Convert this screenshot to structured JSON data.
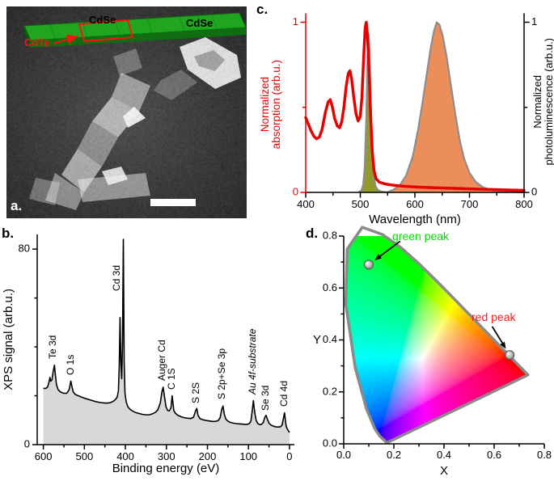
{
  "panels": {
    "a": {
      "letter": "a.",
      "inset": {
        "core_outline_label": "CdSe",
        "crown_label": "CdSe",
        "core_label": "CdTe",
        "slab_color": "#1fa51f",
        "outline_color": "#ff1111"
      }
    },
    "b": {
      "letter": "b."
    },
    "c": {
      "letter": "c."
    },
    "d": {
      "letter": "d."
    }
  },
  "chart_data": [
    {
      "id": "absorption_pl_spectra",
      "type": "line",
      "xlabel": "Wavelength (nm)",
      "ylabel_left": [
        "Normalized",
        "absorption (arb.u.)"
      ],
      "ylabel_right": [
        "Normalized",
        "photoluminescence (arb.u.)"
      ],
      "axis_color_left": "#e60000",
      "xlim": [
        400,
        800
      ],
      "ylim": [
        0,
        1.05
      ],
      "xticks": [
        400,
        500,
        600,
        700,
        800
      ],
      "xticks_minor": [
        450,
        550,
        650,
        750
      ],
      "yticks": [
        0,
        1
      ],
      "series": [
        {
          "name": "pl_green",
          "fill": "#93992d",
          "stroke": "#8d8d8d",
          "width": 2.2,
          "points": [
            [
              496,
              0
            ],
            [
              502,
              0.01
            ],
            [
              505,
              0.04
            ],
            [
              508,
              0.14
            ],
            [
              511,
              0.45
            ],
            [
              513,
              0.78
            ],
            [
              515,
              0.93
            ],
            [
              517,
              0.83
            ],
            [
              519,
              0.52
            ],
            [
              522,
              0.22
            ],
            [
              525,
              0.09
            ],
            [
              528,
              0.035
            ],
            [
              532,
              0.015
            ],
            [
              538,
              0.006
            ],
            [
              546,
              0.002
            ],
            [
              552,
              0
            ]
          ]
        },
        {
          "name": "pl_red",
          "fill": "#ec8e5a",
          "stroke": "#8d8d8d",
          "width": 2.2,
          "points": [
            [
              548,
              0
            ],
            [
              560,
              0.015
            ],
            [
              572,
              0.04
            ],
            [
              584,
              0.1
            ],
            [
              596,
              0.21
            ],
            [
              606,
              0.37
            ],
            [
              614,
              0.53
            ],
            [
              622,
              0.7
            ],
            [
              629,
              0.85
            ],
            [
              635,
              0.95
            ],
            [
              640,
              1.0
            ],
            [
              645,
              0.985
            ],
            [
              651,
              0.92
            ],
            [
              658,
              0.8
            ],
            [
              666,
              0.63
            ],
            [
              674,
              0.46
            ],
            [
              682,
              0.31
            ],
            [
              690,
              0.2
            ],
            [
              700,
              0.115
            ],
            [
              712,
              0.06
            ],
            [
              726,
              0.028
            ],
            [
              742,
              0.012
            ],
            [
              760,
              0.005
            ],
            [
              780,
              0.002
            ],
            [
              800,
              0
            ]
          ]
        },
        {
          "name": "absorption",
          "color": "#e60000",
          "width": 3.5,
          "points": [
            [
              400,
              0.44
            ],
            [
              405,
              0.4
            ],
            [
              410,
              0.36
            ],
            [
              415,
              0.33
            ],
            [
              420,
              0.315
            ],
            [
              425,
              0.325
            ],
            [
              430,
              0.37
            ],
            [
              436,
              0.47
            ],
            [
              441,
              0.53
            ],
            [
              445,
              0.545
            ],
            [
              449,
              0.5
            ],
            [
              453,
              0.435
            ],
            [
              458,
              0.39
            ],
            [
              462,
              0.38
            ],
            [
              466,
              0.415
            ],
            [
              470,
              0.5
            ],
            [
              474,
              0.62
            ],
            [
              478,
              0.7
            ],
            [
              481,
              0.715
            ],
            [
              484,
              0.67
            ],
            [
              488,
              0.56
            ],
            [
              492,
              0.465
            ],
            [
              496,
              0.42
            ],
            [
              500,
              0.445
            ],
            [
              503,
              0.56
            ],
            [
              506,
              0.78
            ],
            [
              509,
              0.97
            ],
            [
              511,
              1.0
            ],
            [
              513,
              0.93
            ],
            [
              516,
              0.72
            ],
            [
              519,
              0.45
            ],
            [
              522,
              0.24
            ],
            [
              525,
              0.13
            ],
            [
              529,
              0.08
            ],
            [
              535,
              0.06
            ],
            [
              545,
              0.05
            ],
            [
              560,
              0.042
            ],
            [
              580,
              0.036
            ],
            [
              600,
              0.032
            ],
            [
              630,
              0.028
            ],
            [
              660,
              0.025
            ],
            [
              700,
              0.021
            ],
            [
              740,
              0.017
            ],
            [
              770,
              0.014
            ],
            [
              800,
              0.012
            ]
          ]
        }
      ]
    },
    {
      "id": "xps_spectrum",
      "type": "area",
      "xlabel": "Binding energy (eV)",
      "ylabel": "XPS signal (arb.u.)",
      "xlim": [
        615,
        -12
      ],
      "ylim": [
        0,
        86
      ],
      "xticks": [
        600,
        500,
        400,
        300,
        200,
        100,
        0
      ],
      "xticks_minor": [
        550,
        450,
        350,
        250,
        150,
        50
      ],
      "yticks": [
        0,
        80
      ],
      "yticks_minor": [
        20,
        40,
        60
      ],
      "fill": "#d8d8d8",
      "line_color": "#000000",
      "points": [
        [
          600,
          23
        ],
        [
          594,
          23
        ],
        [
          590,
          23.5
        ],
        [
          587,
          25
        ],
        [
          584,
          27.5
        ],
        [
          582,
          26
        ],
        [
          579,
          26.5
        ],
        [
          576,
          30
        ],
        [
          573,
          32.5
        ],
        [
          571,
          29
        ],
        [
          568,
          24.5
        ],
        [
          564,
          22.5
        ],
        [
          558,
          21.5
        ],
        [
          550,
          21
        ],
        [
          543,
          21
        ],
        [
          537,
          22.5
        ],
        [
          533,
          26
        ],
        [
          530,
          23.5
        ],
        [
          527,
          21.5
        ],
        [
          522,
          20.5
        ],
        [
          515,
          20
        ],
        [
          508,
          19.5
        ],
        [
          500,
          19
        ],
        [
          490,
          18.5
        ],
        [
          480,
          18
        ],
        [
          470,
          17.5
        ],
        [
          460,
          17.2
        ],
        [
          450,
          17
        ],
        [
          442,
          17
        ],
        [
          435,
          17.3
        ],
        [
          429,
          17.8
        ],
        [
          424,
          18.5
        ],
        [
          420,
          19.5
        ],
        [
          417,
          22
        ],
        [
          415,
          32
        ],
        [
          413,
          52
        ],
        [
          411,
          34
        ],
        [
          409,
          27
        ],
        [
          407,
          42
        ],
        [
          405,
          84
        ],
        [
          403,
          34
        ],
        [
          401,
          21
        ],
        [
          398,
          17.5
        ],
        [
          394,
          15.5
        ],
        [
          389,
          14.5
        ],
        [
          383,
          13.8
        ],
        [
          376,
          13.2
        ],
        [
          368,
          12.8
        ],
        [
          359,
          12.4
        ],
        [
          350,
          12.2
        ],
        [
          342,
          12.2
        ],
        [
          334,
          12.6
        ],
        [
          327,
          13.2
        ],
        [
          321,
          14.2
        ],
        [
          315,
          17
        ],
        [
          311,
          21.5
        ],
        [
          308,
          23.5
        ],
        [
          305,
          20
        ],
        [
          301,
          15.5
        ],
        [
          297,
          14
        ],
        [
          293,
          13.8
        ],
        [
          289,
          15
        ],
        [
          286,
          20
        ],
        [
          284,
          17
        ],
        [
          282,
          14
        ],
        [
          278,
          12.8
        ],
        [
          272,
          12
        ],
        [
          264,
          11.4
        ],
        [
          256,
          11
        ],
        [
          248,
          10.8
        ],
        [
          240,
          10.7
        ],
        [
          234,
          11.2
        ],
        [
          229,
          13.8
        ],
        [
          226,
          14.8
        ],
        [
          223,
          12
        ],
        [
          218,
          10.6
        ],
        [
          211,
          10.2
        ],
        [
          204,
          9.9
        ],
        [
          196,
          9.7
        ],
        [
          188,
          9.5
        ],
        [
          181,
          9.5
        ],
        [
          174,
          9.8
        ],
        [
          169,
          11
        ],
        [
          165,
          14.5
        ],
        [
          162,
          15.8
        ],
        [
          159,
          12.5
        ],
        [
          155,
          10.4
        ],
        [
          150,
          9.6
        ],
        [
          144,
          9.1
        ],
        [
          137,
          8.8
        ],
        [
          130,
          8.6
        ],
        [
          123,
          8.5
        ],
        [
          116,
          8.4
        ],
        [
          109,
          8.3
        ],
        [
          103,
          8.3
        ],
        [
          98,
          8.6
        ],
        [
          94,
          9.6
        ],
        [
          91,
          13.5
        ],
        [
          88,
          18
        ],
        [
          86,
          15
        ],
        [
          84,
          12.5
        ],
        [
          81,
          9.8
        ],
        [
          77,
          8.6
        ],
        [
          73,
          8.2
        ],
        [
          69,
          8.2
        ],
        [
          64,
          9
        ],
        [
          60,
          11.2
        ],
        [
          57,
          12
        ],
        [
          54,
          10.5
        ],
        [
          50,
          8.8
        ],
        [
          45,
          8
        ],
        [
          40,
          7.6
        ],
        [
          34,
          7.3
        ],
        [
          28,
          7.2
        ],
        [
          22,
          7.3
        ],
        [
          18,
          8
        ],
        [
          15,
          10.5
        ],
        [
          12,
          13
        ],
        [
          10,
          10
        ],
        [
          8,
          7.5
        ],
        [
          5,
          6.3
        ],
        [
          2,
          5.5
        ],
        [
          0,
          5
        ]
      ],
      "peak_labels": [
        {
          "text": "Te 3d",
          "x": 578,
          "y": 35
        },
        {
          "text": "O 1s",
          "x": 535,
          "y": 28.5
        },
        {
          "text": "Cd 3d",
          "x": 421,
          "y": 63
        },
        {
          "text": "Auger Cd",
          "x": 312,
          "y": 26
        },
        {
          "text": "C 1S",
          "x": 288,
          "y": 22.5
        },
        {
          "text": "S 2S",
          "x": 229,
          "y": 17
        },
        {
          "text": "S 2p+Se 3p",
          "x": 166,
          "y": 18.5
        },
        {
          "text": "Au 4f-substrate",
          "x": 90,
          "y": 20.5,
          "italic": true
        },
        {
          "text": "Se 3d",
          "x": 59,
          "y": 14
        },
        {
          "text": "Cd 4d",
          "x": 14,
          "y": 15.5
        }
      ]
    },
    {
      "id": "cie_chromaticity",
      "type": "scatter",
      "xlabel": "X",
      "ylabel": "Y",
      "xlim": [
        0,
        0.8
      ],
      "ylim": [
        0,
        0.8
      ],
      "xticks": [
        "0.0",
        "0.2",
        "0.4",
        "0.6",
        "0.8"
      ],
      "yticks": [
        "0.0",
        "0.2",
        "0.4",
        "0.6",
        "0.8"
      ],
      "ticks_minor": [
        0.1,
        0.3,
        0.5,
        0.7
      ],
      "outline_color": "#8a8a8a",
      "locus": [
        [
          0.1741,
          0.005
        ],
        [
          0.1738,
          0.0049
        ],
        [
          0.1733,
          0.0048
        ],
        [
          0.1726,
          0.0048
        ],
        [
          0.1714,
          0.0051
        ],
        [
          0.1689,
          0.0069
        ],
        [
          0.1644,
          0.0109
        ],
        [
          0.1566,
          0.0177
        ],
        [
          0.144,
          0.0297
        ],
        [
          0.1241,
          0.0578
        ],
        [
          0.0913,
          0.1327
        ],
        [
          0.0454,
          0.295
        ],
        [
          0.0082,
          0.5384
        ],
        [
          0.0139,
          0.7502
        ],
        [
          0.0743,
          0.8338
        ],
        [
          0.1547,
          0.8059
        ],
        [
          0.2296,
          0.7543
        ],
        [
          0.3016,
          0.6923
        ],
        [
          0.3731,
          0.6245
        ],
        [
          0.4441,
          0.5547
        ],
        [
          0.5125,
          0.4866
        ],
        [
          0.5752,
          0.4242
        ],
        [
          0.627,
          0.3725
        ],
        [
          0.6658,
          0.334
        ],
        [
          0.6915,
          0.3083
        ],
        [
          0.7079,
          0.292
        ],
        [
          0.719,
          0.2809
        ],
        [
          0.726,
          0.274
        ],
        [
          0.73,
          0.27
        ],
        [
          0.732,
          0.268
        ],
        [
          0.7334,
          0.2666
        ],
        [
          0.7347,
          0.2653
        ]
      ],
      "points": [
        {
          "label": "green peak",
          "label_color": "#00dd00",
          "x": 0.1,
          "y": 0.69,
          "arrow_from": [
            0.225,
            0.78
          ]
        },
        {
          "label": "red peak",
          "label_color": "#ff1a1a",
          "x": 0.662,
          "y": 0.342,
          "arrow_from": [
            0.592,
            0.452
          ]
        }
      ]
    }
  ]
}
